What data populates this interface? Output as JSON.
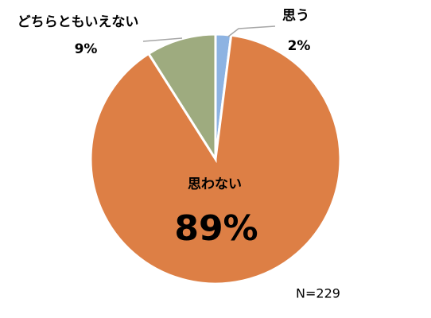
{
  "chart_data": {
    "type": "pie",
    "categories": [
      "思う",
      "思わない",
      "どちらともいえない"
    ],
    "values": [
      2,
      89,
      9
    ],
    "value_labels": [
      "2%",
      "89%",
      "9%"
    ],
    "colors": [
      "#8db3e2",
      "#dd7f45",
      "#9eab7f"
    ],
    "annotation": "N=229"
  }
}
